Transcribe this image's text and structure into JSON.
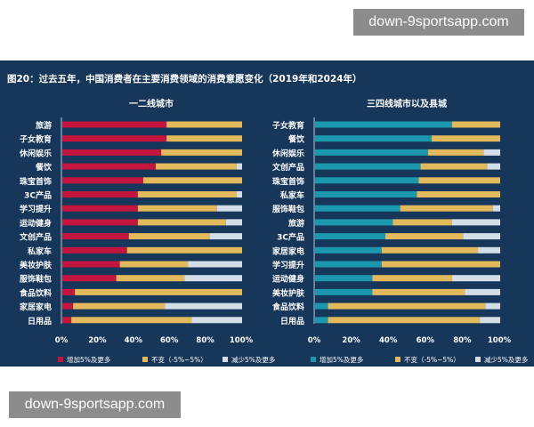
{
  "watermarks": {
    "top": "down-9sportsapp.com",
    "bottom": "down-9sportsapp.com"
  },
  "colors": {
    "background": "#16365a",
    "increase_left": "#c3153d",
    "increase_right": "#1b98ad",
    "unchanged": "#e2b95b",
    "decrease": "#d4dee8"
  },
  "chart_data": [
    {
      "type": "bar",
      "stacked": true,
      "orientation": "horizontal",
      "title": "图20：过去五年，中国消费者在主要消费领域的消费意愿变化（2019年和2024年）",
      "subtitle": "一二线城市",
      "categories": [
        "旅游",
        "子女教育",
        "休闲娱乐",
        "餐饮",
        "珠宝首饰",
        "3C产品",
        "学习提升",
        "运动健身",
        "文创产品",
        "私家车",
        "美妆护肤",
        "服饰鞋包",
        "食品饮料",
        "家居家电",
        "日用品"
      ],
      "series": [
        {
          "name": "增加5%及更多",
          "values": [
            58,
            58,
            55,
            52,
            45,
            42,
            42,
            42,
            37,
            36,
            32,
            30,
            7,
            6,
            5
          ]
        },
        {
          "name": "不变（-5%~5%）",
          "values": [
            42,
            42,
            45,
            45,
            55,
            55,
            44,
            49,
            45,
            64,
            38,
            38,
            93,
            51,
            67
          ]
        },
        {
          "name": "减少5%及更多",
          "values": [
            0,
            0,
            0,
            3,
            0,
            3,
            14,
            9,
            18,
            0,
            30,
            32,
            0,
            43,
            28
          ]
        }
      ],
      "xlim": [
        0,
        100
      ],
      "xticks": [
        "0%",
        "20%",
        "40%",
        "60%",
        "80%",
        "100%"
      ],
      "legend": "bottom"
    },
    {
      "type": "bar",
      "stacked": true,
      "orientation": "horizontal",
      "subtitle": "三四线城市以及县城",
      "categories": [
        "子女教育",
        "餐饮",
        "休闲娱乐",
        "文创产品",
        "珠宝首饰",
        "私家车",
        "服饰鞋包",
        "旅游",
        "3C产品",
        "家居家电",
        "学习提升",
        "运动健身",
        "美妆护肤",
        "食品饮料",
        "日用品"
      ],
      "series": [
        {
          "name": "增加5%及更多",
          "values": [
            74,
            63,
            61,
            57,
            56,
            55,
            46,
            42,
            38,
            36,
            36,
            31,
            31,
            7,
            7
          ]
        },
        {
          "name": "不变（-5%~5%）",
          "values": [
            26,
            37,
            30,
            36,
            44,
            45,
            50,
            32,
            42,
            52,
            64,
            43,
            50,
            85,
            82
          ]
        },
        {
          "name": "减少5%及更多",
          "values": [
            0,
            0,
            9,
            7,
            0,
            0,
            4,
            26,
            20,
            12,
            0,
            26,
            19,
            8,
            11
          ]
        }
      ],
      "xlim": [
        0,
        100
      ],
      "xticks": [
        "0%",
        "20%",
        "40%",
        "60%",
        "80%",
        "100%"
      ],
      "legend": "bottom"
    }
  ]
}
